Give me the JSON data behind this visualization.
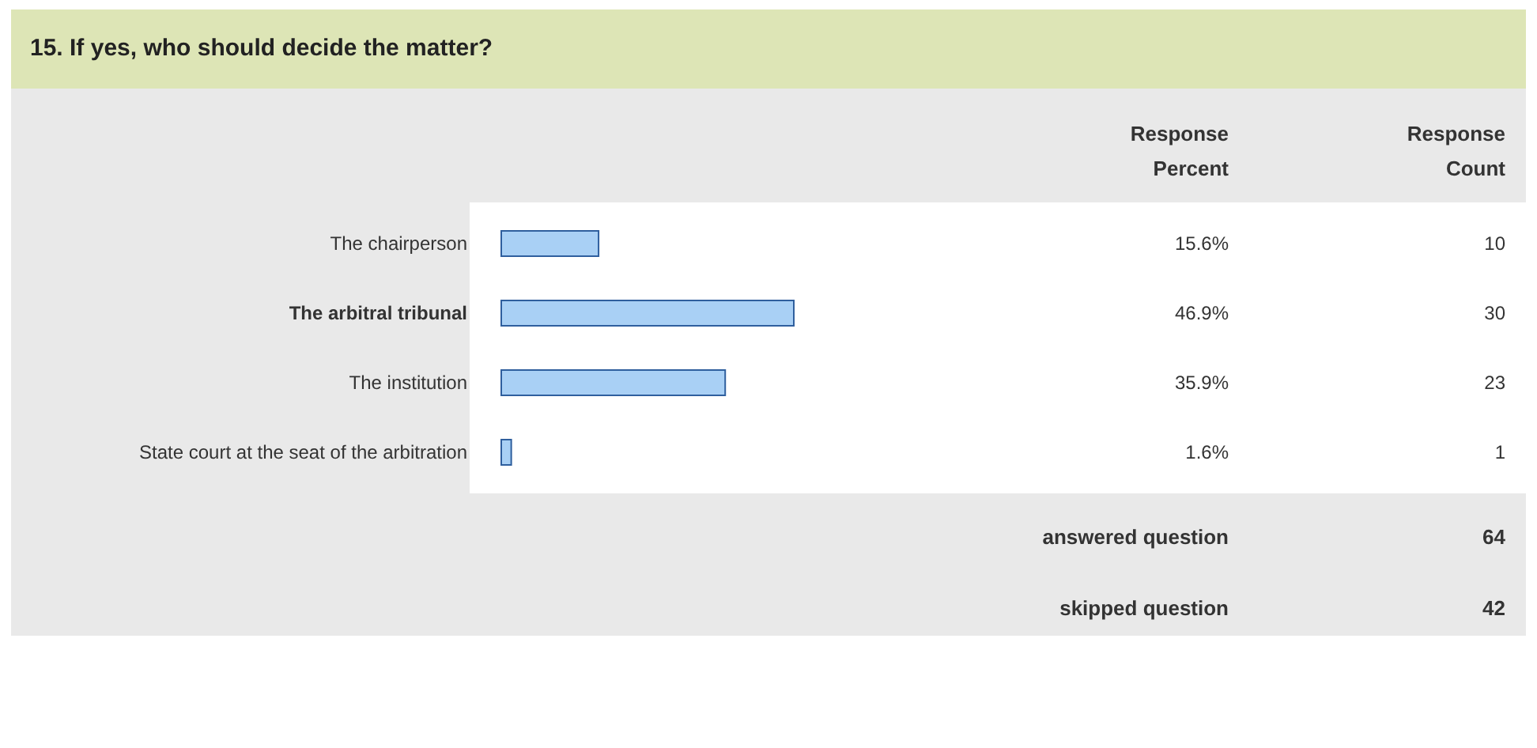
{
  "chart_data": {
    "type": "bar",
    "orientation": "horizontal",
    "title": "15. If yes, who should decide the matter?",
    "categories": [
      "The chairperson",
      "The arbitral tribunal",
      "The institution",
      "State court at the seat of the arbitration"
    ],
    "values": [
      15.6,
      46.9,
      35.9,
      1.6
    ],
    "value_labels": [
      "15.6%",
      "46.9%",
      "35.9%",
      "1.6%"
    ],
    "color": "#a9d0f5",
    "annotations": [
      "Response Percent",
      "Response Count",
      "answered question",
      "64",
      "skipped question",
      "42",
      "10",
      "30",
      "23",
      "1"
    ]
  }
}
